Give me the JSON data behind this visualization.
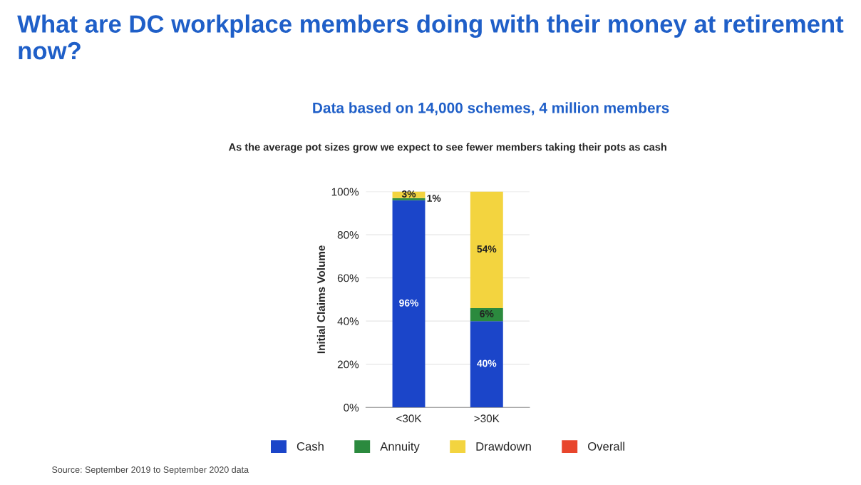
{
  "chart_data": {
    "type": "bar",
    "stacked": true,
    "title": "What are DC workplace members doing with their money at retirement now?",
    "subtitle": "Data based on 14,000 schemes, 4 million members",
    "annotations": [
      "As the average pot sizes grow we expect to see fewer members taking their pots as cash",
      "Source: September 2019 to September 2020 data"
    ],
    "ylabel": "Initial Claims Volume",
    "categories": [
      "<30K",
      ">30K"
    ],
    "series": [
      {
        "name": "Cash",
        "color": "#1b45c9",
        "values": [
          96,
          40
        ],
        "value_labels": [
          "96%",
          "40%"
        ]
      },
      {
        "name": "Annuity",
        "color": "#2b8a3e",
        "values": [
          1,
          6
        ],
        "value_labels": [
          "1%",
          "6%"
        ]
      },
      {
        "name": "Drawdown",
        "color": "#f3d43f",
        "values": [
          3,
          54
        ],
        "value_labels": [
          "3%",
          "54%"
        ]
      },
      {
        "name": "Overall",
        "color": "#e8452c",
        "values": [
          null,
          null
        ]
      }
    ],
    "ylim": [
      0,
      100
    ],
    "yticks": [
      {
        "value": 0,
        "label": "0%"
      },
      {
        "value": 20,
        "label": "20%"
      },
      {
        "value": 40,
        "label": "40%"
      },
      {
        "value": 60,
        "label": "60%"
      },
      {
        "value": 80,
        "label": "80%"
      },
      {
        "value": 100,
        "label": "100%"
      }
    ],
    "grid": "y",
    "legend": "bottom"
  }
}
